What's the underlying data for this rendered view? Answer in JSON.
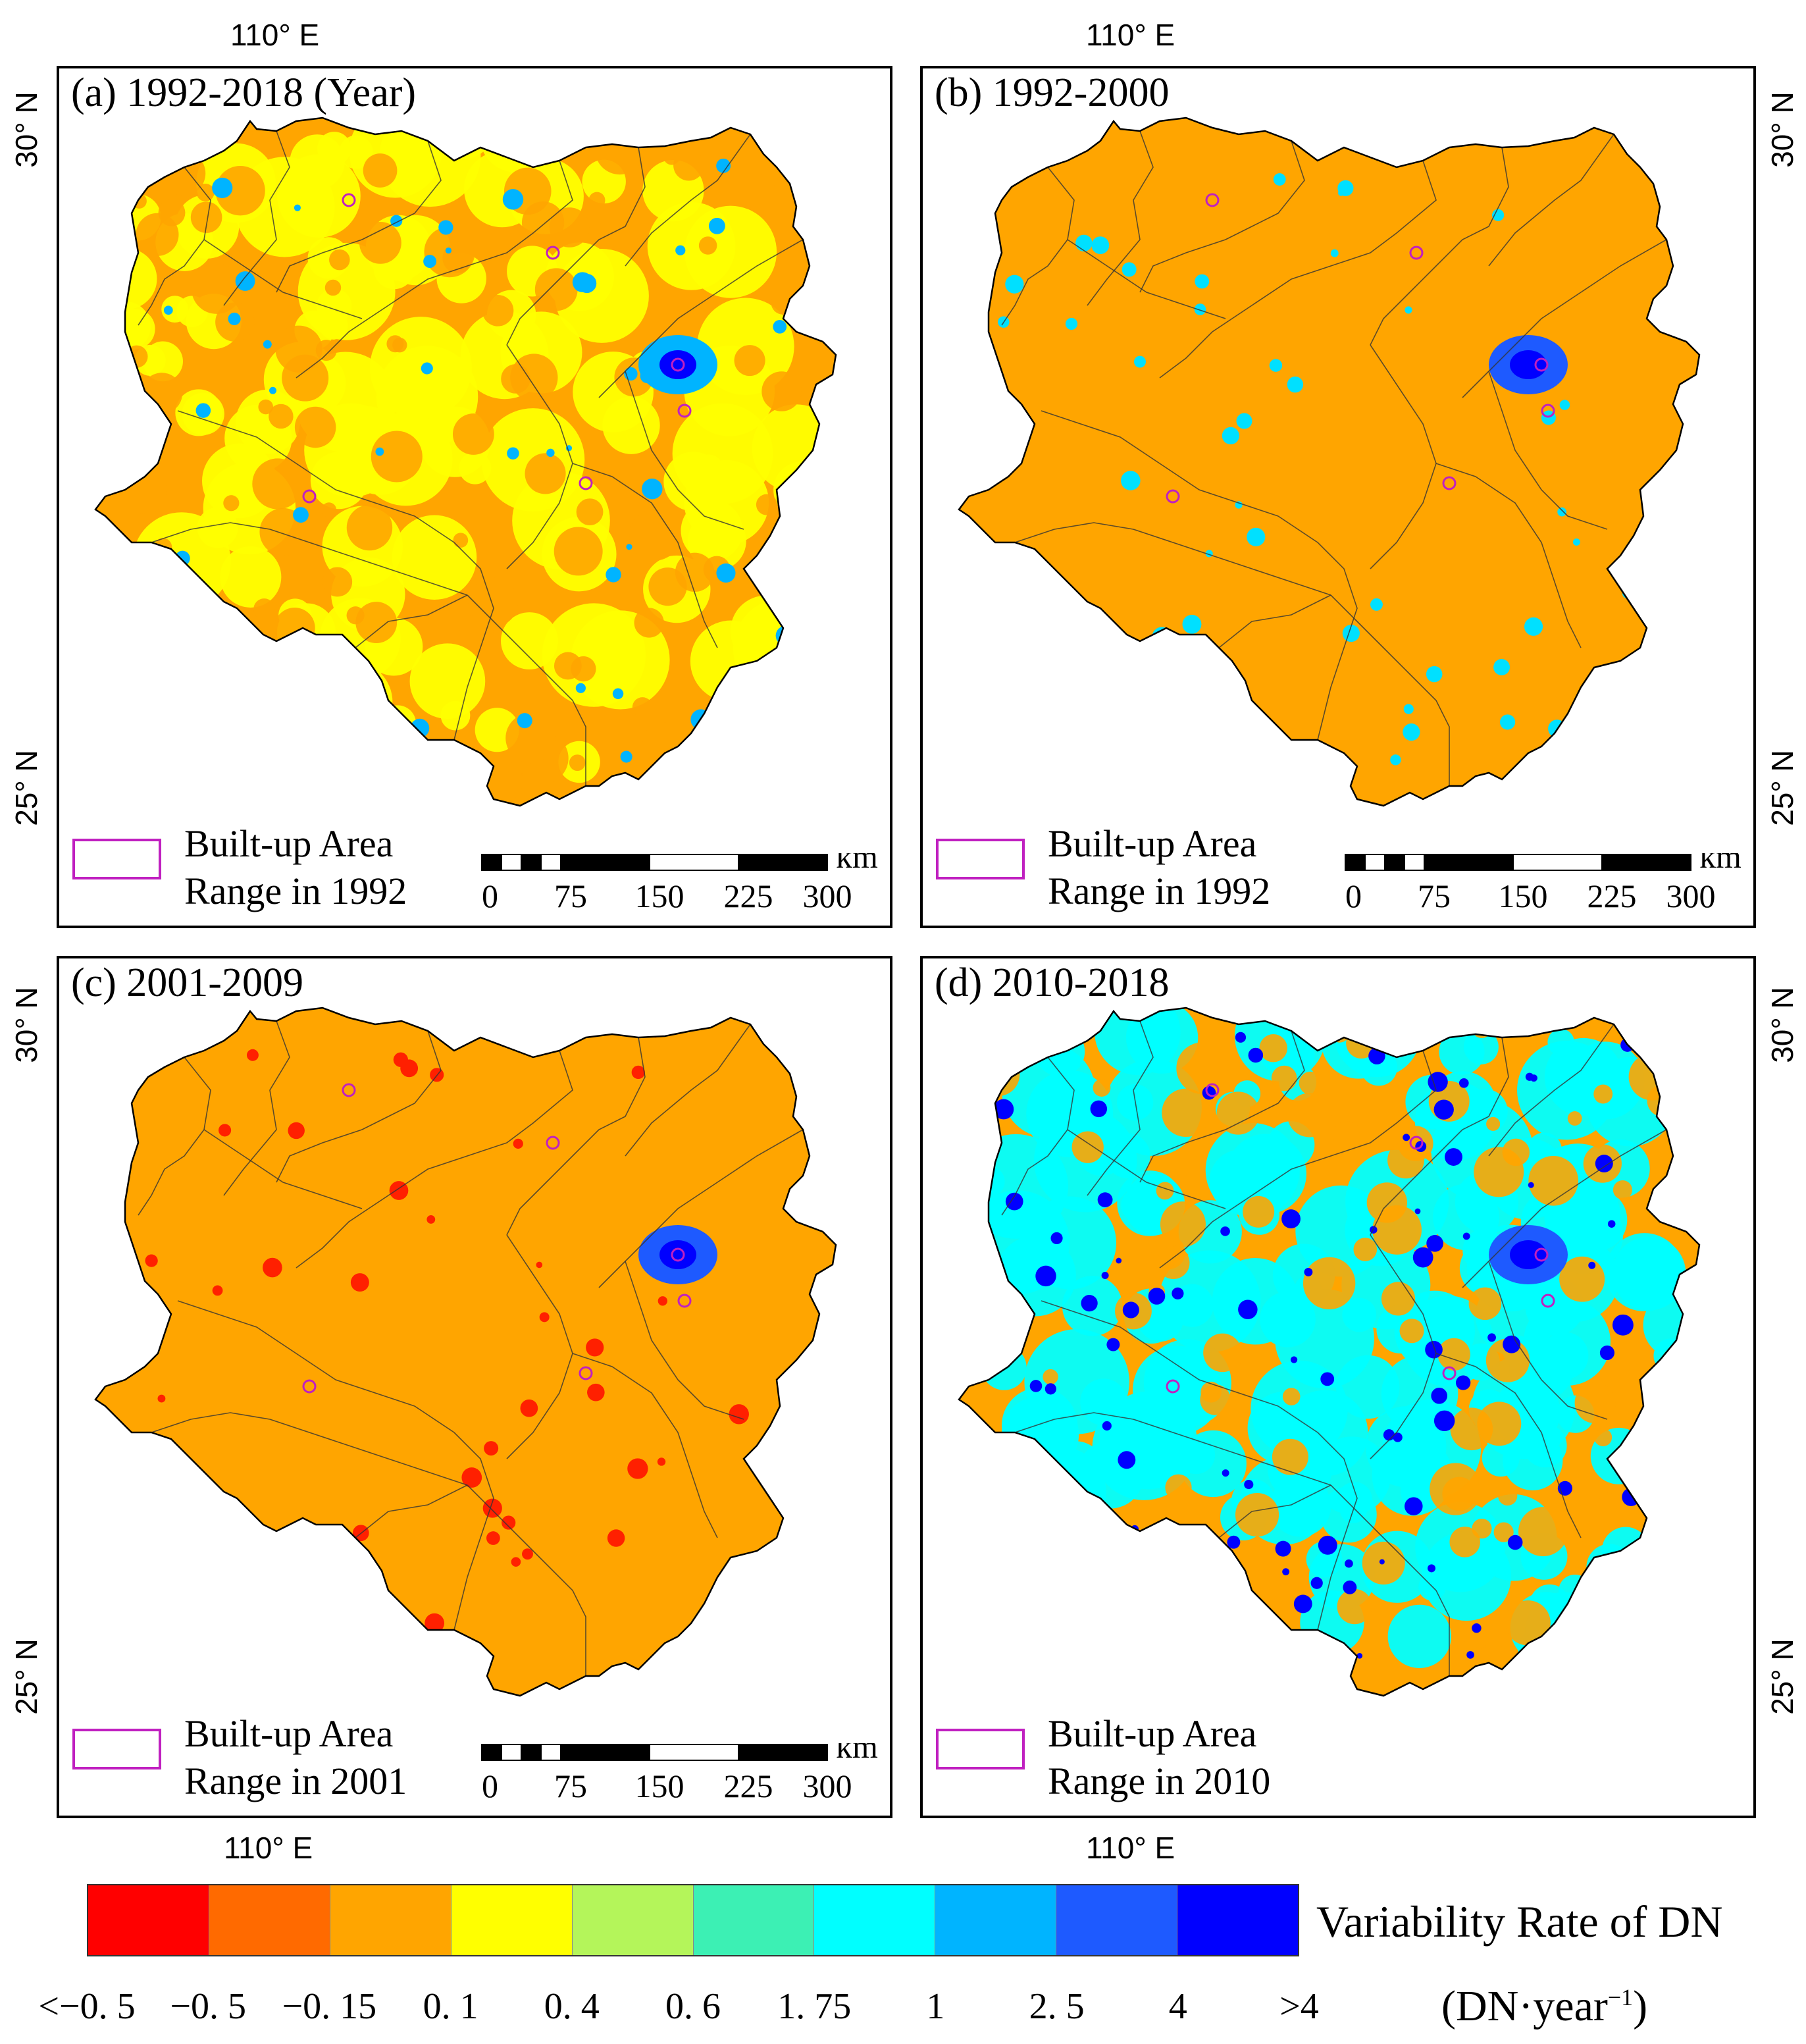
{
  "panels": [
    {
      "id": "a",
      "title": "(a) 1992-2018 (Year)",
      "legend": [
        "Built-up Area",
        "Range in 1992"
      ],
      "base_color": "#ffa500",
      "dominant_color": "#ffff00",
      "accent_color": "#00b4ff"
    },
    {
      "id": "b",
      "title": "(b) 1992-2000",
      "legend": [
        "Built-up Area",
        "Range in 1992"
      ],
      "base_color": "#ffa500",
      "dominant_color": "#ffa500",
      "accent_color": "#00e0ff"
    },
    {
      "id": "c",
      "title": "(c) 2001-2009",
      "legend": [
        "Built-up Area",
        "Range in 2001"
      ],
      "base_color": "#ffa500",
      "dominant_color": "#ffa500",
      "accent_color": "#ff2000"
    },
    {
      "id": "d",
      "title": "(d) 2010-2018",
      "legend": [
        "Built-up Area",
        "Range in 2010"
      ],
      "base_color": "#ffa500",
      "dominant_color": "#00ffff",
      "accent_color": "#0000ff"
    }
  ],
  "coordinates": {
    "lon": "110° E",
    "lat_north": "30° N",
    "lat_south": "25° N"
  },
  "scale_bar": {
    "unit": "km",
    "ticks": [
      "0",
      "75",
      "150",
      "225",
      "300"
    ]
  },
  "colorbar": {
    "title": "Variability Rate of DN",
    "unit": "(DN·year",
    "unit_sup": "−1",
    "unit_close": ")",
    "colors": [
      "#ff0000",
      "#ff6a00",
      "#ffa500",
      "#ffff00",
      "#b4f55a",
      "#3cf0b4",
      "#00ffff",
      "#00b4ff",
      "#1e5aff",
      "#0000ff"
    ],
    "labels": [
      "<−0. 5",
      "−0. 5",
      "−0. 15",
      "0. 1",
      "0. 4",
      "0. 6",
      "1. 75",
      "1",
      "2. 5",
      "4",
      ">4"
    ]
  }
}
